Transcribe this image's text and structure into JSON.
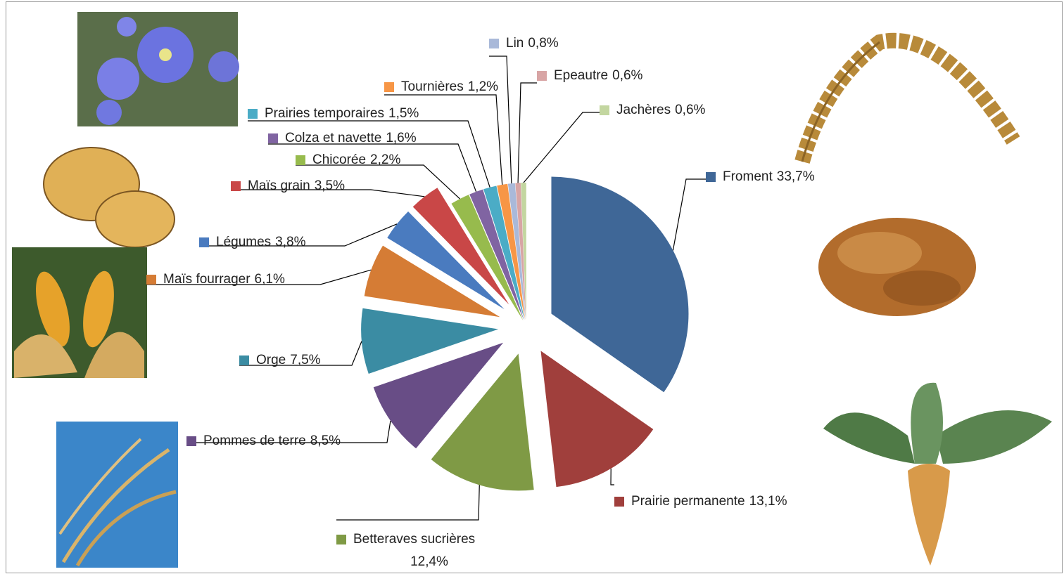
{
  "chart_data": {
    "type": "pie",
    "categories": [
      "Froment",
      "Prairie permanente",
      "Betteraves sucrières",
      "Pommes de terre",
      "Orge",
      "Maïs fourrager",
      "Légumes",
      "Maïs grain",
      "Chicorée",
      "Colza et navette",
      "Prairies temporaires",
      "Tournières",
      "Lin",
      "Epeautre",
      "Jachères"
    ],
    "values": [
      33.7,
      13.1,
      12.4,
      8.5,
      7.5,
      6.1,
      3.8,
      3.5,
      2.2,
      1.6,
      1.5,
      1.2,
      0.8,
      0.6,
      0.6
    ],
    "value_labels": [
      "33,7%",
      "13,1%",
      "12,4%",
      "8,5%",
      "7,5%",
      "6,1%",
      "3,8%",
      "3,5%",
      "2,2%",
      "1,6%",
      "1,5%",
      "1,2%",
      "0,8%",
      "0,6%",
      "0,6%"
    ],
    "colors": [
      "#3f6797",
      "#a03f3c",
      "#7f9a45",
      "#684d86",
      "#3b8ca3",
      "#d57c35",
      "#4a7bbf",
      "#c94747",
      "#97bb4d",
      "#8064a2",
      "#4bacc6",
      "#f79646",
      "#a9b9d9",
      "#d8a5a5",
      "#c3d6a0"
    ]
  }
}
